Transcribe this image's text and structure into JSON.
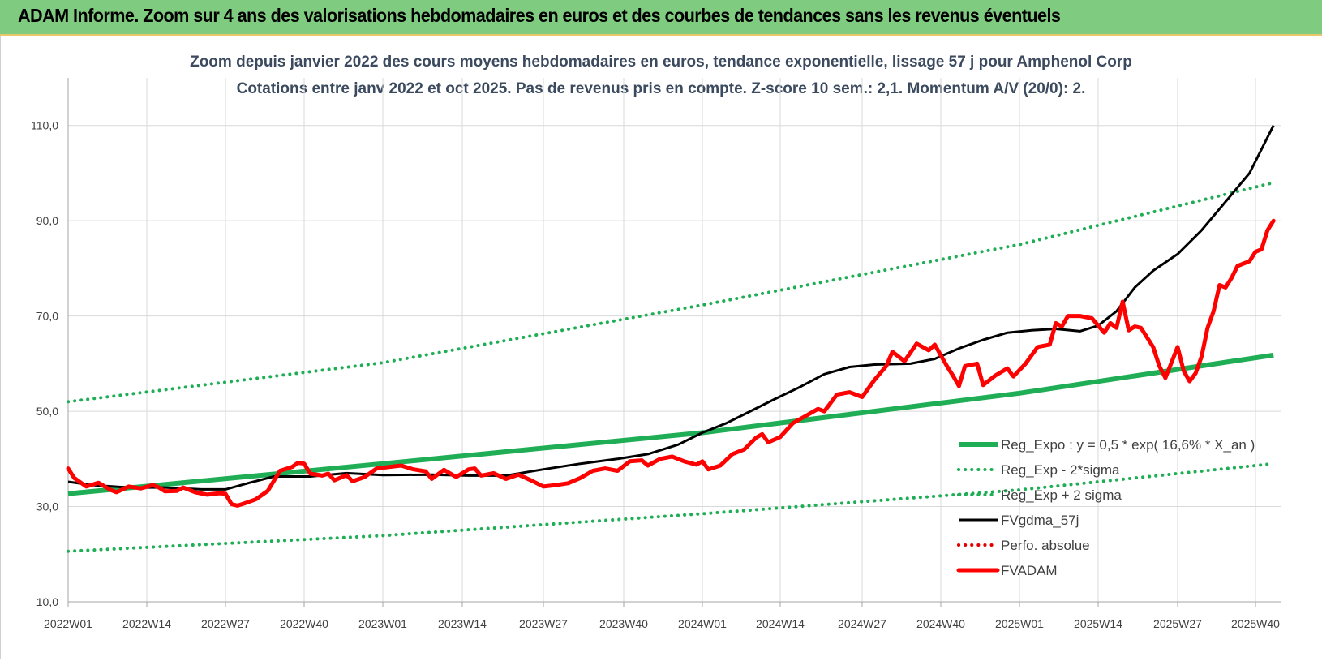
{
  "banner": {
    "title": "ADAM Informe. Zoom sur 4 ans des valorisations hebdomadaires en euros et des courbes de tendances sans les revenus éventuels"
  },
  "chart_data": {
    "type": "line",
    "title": "Zoom depuis janvier 2022 des cours moyens hebdomadaires en euros, tendance exponentielle, lissage 57 j pour Amphenol Corp",
    "subtitle": "Cotations entre janv 2022 et oct 2025. Pas de revenus pris en compte. Z-score 10 sem.: 2,1. Momentum A/V (20/0): 2.",
    "xlabel": "",
    "ylabel": "",
    "ylim": [
      10,
      120
    ],
    "yticks": [
      "10,0",
      "30,0",
      "50,0",
      "70,0",
      "90,0",
      "110,0"
    ],
    "ytick_values": [
      10,
      30,
      50,
      70,
      90,
      110
    ],
    "x_tick_labels": [
      "2022W01",
      "2022W14",
      "2022W27",
      "2022W40",
      "2023W01",
      "2023W14",
      "2023W27",
      "2023W40",
      "2024W01",
      "2024W14",
      "2024W27",
      "2024W40",
      "2025W01",
      "2025W14",
      "2025W27",
      "2025W40"
    ],
    "x_tick_weeks": [
      0,
      13,
      26,
      39,
      52,
      65,
      78,
      91,
      104,
      117,
      130,
      143,
      156,
      169,
      182,
      195
    ],
    "x_range_weeks": [
      0,
      198
    ],
    "grid": "horizontal and vertical",
    "legend_position": "bottom-right",
    "series": [
      {
        "name": "Reg_Expo : y = 0,5 * exp( 16,6% * X_an )",
        "color": "#1fae55",
        "style": "solid",
        "points": [
          [
            0,
            32.7
          ],
          [
            52,
            39.0
          ],
          [
            104,
            45.5
          ],
          [
            156,
            53.8
          ],
          [
            198,
            61.8
          ]
        ]
      },
      {
        "name": "Reg_Exp - 2*sigma",
        "color": "#1fae55",
        "style": "dotted",
        "points": [
          [
            0,
            20.6
          ],
          [
            52,
            23.9
          ],
          [
            104,
            28.5
          ],
          [
            156,
            33.5
          ],
          [
            198,
            39.0
          ]
        ]
      },
      {
        "name": "Reg_Exp + 2 sigma",
        "color": "#1fae55",
        "style": "dotted",
        "points": [
          [
            0,
            52.0
          ],
          [
            52,
            60.2
          ],
          [
            104,
            72.3
          ],
          [
            156,
            85.0
          ],
          [
            198,
            98.0
          ]
        ]
      },
      {
        "name": "FVgdma_57j",
        "color": "#000000",
        "style": "solid",
        "points": [
          [
            0,
            35.2
          ],
          [
            4,
            34.5
          ],
          [
            10,
            34.0
          ],
          [
            16,
            34.0
          ],
          [
            22,
            33.6
          ],
          [
            26,
            33.6
          ],
          [
            30,
            35.0
          ],
          [
            34,
            36.3
          ],
          [
            40,
            36.3
          ],
          [
            46,
            37.0
          ],
          [
            52,
            36.6
          ],
          [
            60,
            36.7
          ],
          [
            66,
            36.5
          ],
          [
            72,
            36.5
          ],
          [
            78,
            37.8
          ],
          [
            84,
            39.0
          ],
          [
            90,
            40.0
          ],
          [
            95,
            41.0
          ],
          [
            100,
            43.0
          ],
          [
            104,
            45.5
          ],
          [
            108,
            47.5
          ],
          [
            112,
            50.0
          ],
          [
            116,
            52.5
          ],
          [
            120,
            55.0
          ],
          [
            124,
            57.8
          ],
          [
            128,
            59.3
          ],
          [
            132,
            59.8
          ],
          [
            138,
            60.0
          ],
          [
            142,
            61.0
          ],
          [
            146,
            63.2
          ],
          [
            150,
            65.0
          ],
          [
            154,
            66.5
          ],
          [
            158,
            67.0
          ],
          [
            162,
            67.3
          ],
          [
            166,
            66.8
          ],
          [
            169,
            68.0
          ],
          [
            172,
            71.0
          ],
          [
            175,
            76.0
          ],
          [
            178,
            79.5
          ],
          [
            182,
            83.0
          ],
          [
            186,
            88.0
          ],
          [
            190,
            94.0
          ],
          [
            194,
            100.0
          ],
          [
            198,
            110.0
          ]
        ]
      },
      {
        "name": "Perfo. absolue",
        "color": "#e00000",
        "style": "dotted",
        "points": []
      },
      {
        "name": "FVADAM",
        "color": "#ff0000",
        "style": "solid",
        "points": [
          [
            0,
            38.0
          ],
          [
            1,
            36.0
          ],
          [
            3,
            34.2
          ],
          [
            5,
            35.0
          ],
          [
            7,
            33.5
          ],
          [
            8,
            33.0
          ],
          [
            10,
            34.2
          ],
          [
            12,
            33.8
          ],
          [
            14,
            34.5
          ],
          [
            15,
            34.0
          ],
          [
            16,
            33.2
          ],
          [
            18,
            33.3
          ],
          [
            19,
            34.0
          ],
          [
            21,
            33.0
          ],
          [
            23,
            32.5
          ],
          [
            25,
            32.8
          ],
          [
            26,
            32.7
          ],
          [
            27,
            30.5
          ],
          [
            28,
            30.2
          ],
          [
            29,
            30.6
          ],
          [
            31,
            31.5
          ],
          [
            33,
            33.3
          ],
          [
            35,
            37.5
          ],
          [
            37,
            38.3
          ],
          [
            38,
            39.2
          ],
          [
            39,
            39.0
          ],
          [
            40,
            36.9
          ],
          [
            42,
            36.5
          ],
          [
            43,
            36.9
          ],
          [
            44,
            35.5
          ],
          [
            46,
            36.6
          ],
          [
            47,
            35.3
          ],
          [
            49,
            36.2
          ],
          [
            51,
            38.0
          ],
          [
            53,
            38.3
          ],
          [
            55,
            38.6
          ],
          [
            57,
            37.8
          ],
          [
            59,
            37.4
          ],
          [
            60,
            35.8
          ],
          [
            62,
            37.7
          ],
          [
            64,
            36.2
          ],
          [
            66,
            37.8
          ],
          [
            67,
            38.0
          ],
          [
            68,
            36.5
          ],
          [
            70,
            37.0
          ],
          [
            72,
            35.8
          ],
          [
            74,
            36.7
          ],
          [
            76,
            35.5
          ],
          [
            78,
            34.2
          ],
          [
            80,
            34.5
          ],
          [
            82,
            34.9
          ],
          [
            84,
            36.0
          ],
          [
            86,
            37.5
          ],
          [
            88,
            38.0
          ],
          [
            90,
            37.5
          ],
          [
            92,
            39.5
          ],
          [
            94,
            39.7
          ],
          [
            95,
            38.6
          ],
          [
            97,
            40.0
          ],
          [
            99,
            40.5
          ],
          [
            101,
            39.5
          ],
          [
            103,
            38.8
          ],
          [
            104,
            39.5
          ],
          [
            105,
            37.8
          ],
          [
            107,
            38.6
          ],
          [
            109,
            41.0
          ],
          [
            111,
            42.0
          ],
          [
            113,
            44.5
          ],
          [
            114,
            45.2
          ],
          [
            115,
            43.5
          ],
          [
            117,
            44.6
          ],
          [
            119,
            47.5
          ],
          [
            121,
            49.0
          ],
          [
            123,
            50.5
          ],
          [
            124,
            50.0
          ],
          [
            126,
            53.5
          ],
          [
            128,
            54.0
          ],
          [
            130,
            53.0
          ],
          [
            132,
            56.5
          ],
          [
            134,
            59.5
          ],
          [
            135,
            62.5
          ],
          [
            137,
            60.5
          ],
          [
            139,
            64.2
          ],
          [
            141,
            62.8
          ],
          [
            142,
            64.0
          ],
          [
            144,
            59.5
          ],
          [
            145,
            57.5
          ],
          [
            146,
            55.3
          ],
          [
            147,
            59.5
          ],
          [
            149,
            60.0
          ],
          [
            150,
            55.5
          ],
          [
            152,
            57.5
          ],
          [
            154,
            59.0
          ],
          [
            155,
            57.3
          ],
          [
            157,
            60.0
          ],
          [
            159,
            63.5
          ],
          [
            161,
            64.0
          ],
          [
            162,
            68.5
          ],
          [
            163,
            67.8
          ],
          [
            164,
            70.0
          ],
          [
            166,
            70.0
          ],
          [
            168,
            69.5
          ],
          [
            169,
            68.0
          ],
          [
            170,
            66.5
          ],
          [
            171,
            68.5
          ],
          [
            172,
            67.5
          ],
          [
            173,
            73.0
          ],
          [
            174,
            67.0
          ],
          [
            175,
            67.8
          ],
          [
            176,
            67.5
          ],
          [
            178,
            63.5
          ],
          [
            179,
            59.5
          ],
          [
            180,
            57.0
          ],
          [
            182,
            63.5
          ],
          [
            183,
            58.5
          ],
          [
            184,
            56.3
          ],
          [
            185,
            58.0
          ],
          [
            186,
            61.5
          ],
          [
            187,
            67.5
          ],
          [
            188,
            71.0
          ],
          [
            189,
            76.5
          ],
          [
            190,
            76.0
          ],
          [
            191,
            78.0
          ],
          [
            192,
            80.5
          ],
          [
            193,
            81.0
          ],
          [
            194,
            81.5
          ],
          [
            195,
            83.5
          ],
          [
            196,
            84.0
          ],
          [
            197,
            88.0
          ],
          [
            198,
            90.0
          ]
        ]
      }
    ]
  }
}
